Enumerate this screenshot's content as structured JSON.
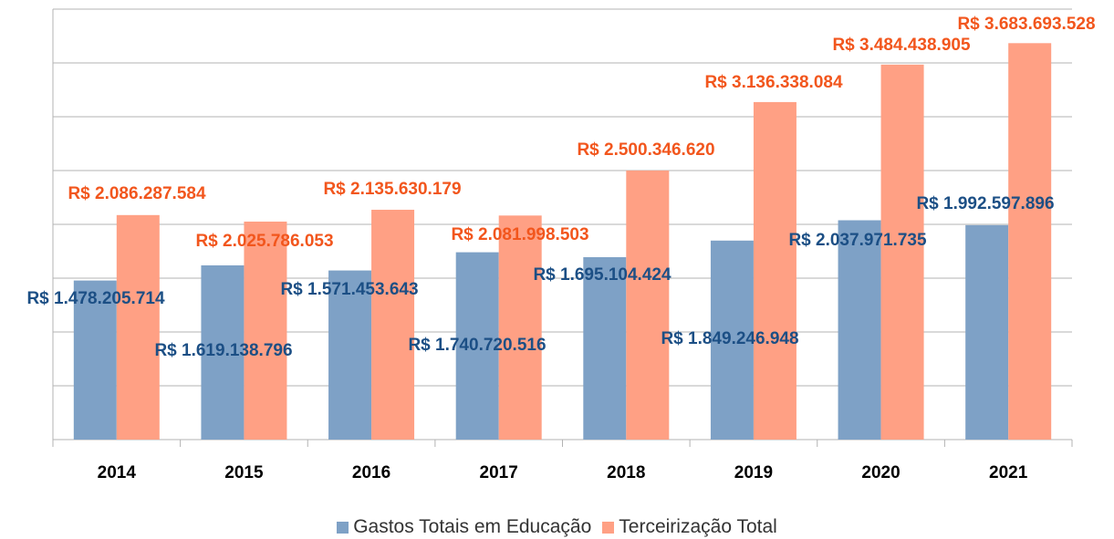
{
  "chart_data": {
    "type": "bar",
    "categories": [
      "2014",
      "2015",
      "2016",
      "2017",
      "2018",
      "2019",
      "2020",
      "2021"
    ],
    "series": [
      {
        "name": "Gastos Totais em Educação",
        "color": "#7ea1c6",
        "label_color": "#1c4f85",
        "values": [
          1478205714,
          1619138796,
          1571453643,
          1740720516,
          1695104424,
          1849246948,
          2037971735,
          1992597896
        ],
        "value_labels": [
          "R$ 1.478.205.714",
          "R$ 1.619.138.796",
          "R$ 1.571.453.643",
          "R$ 1.740.720.516",
          "R$ 1.695.104.424",
          "R$ 1.849.246.948",
          "R$ 2.037.971.735",
          "R$ 1.992.597.896"
        ]
      },
      {
        "name": "Terceirização Total",
        "color": "#ffa084",
        "label_color": "#f2561d",
        "values": [
          2086287584,
          2025786053,
          2135630179,
          2081998503,
          2500346620,
          3136338084,
          3484438905,
          3683693528
        ],
        "value_labels": [
          "R$ 2.086.287.584",
          "R$ 2.025.786.053",
          "R$ 2.135.630.179",
          "R$ 2.081.998.503",
          "R$ 2.500.346.620",
          "R$ 3.136.338.084",
          "R$ 3.484.438.905",
          "R$ 3.683.693.528"
        ]
      }
    ],
    "ylim": [
      0,
      4000000000
    ],
    "yticks": [
      0,
      500000000,
      1000000000,
      1500000000,
      2000000000,
      2500000000,
      3000000000,
      3500000000,
      4000000000
    ],
    "grid": true,
    "legend": "bottom"
  }
}
